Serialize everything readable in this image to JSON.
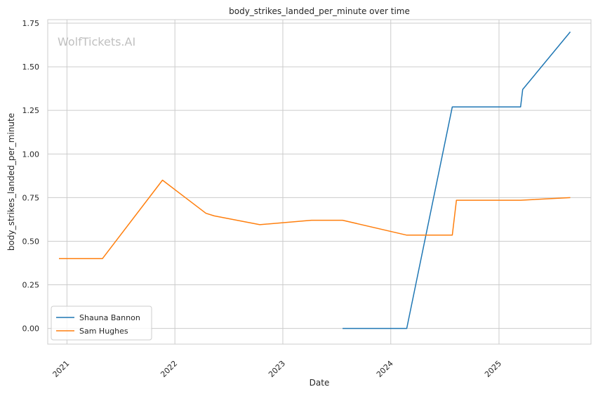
{
  "watermark": "WolfTickets.AI",
  "chart_data": {
    "type": "line",
    "title": "body_strikes_landed_per_minute over time",
    "xlabel": "Date",
    "ylabel": "body_strikes_landed_per_minute",
    "ylim": [
      -0.09,
      1.77
    ],
    "xlim": [
      "2020-10-28",
      "2025-11-08"
    ],
    "x_ticks": [
      {
        "date": "2021-01-01",
        "label": "2021"
      },
      {
        "date": "2022-01-01",
        "label": "2022"
      },
      {
        "date": "2023-01-01",
        "label": "2023"
      },
      {
        "date": "2024-01-01",
        "label": "2024"
      },
      {
        "date": "2025-01-01",
        "label": "2025"
      }
    ],
    "y_ticks": [
      {
        "value": 0.0,
        "label": "0.00"
      },
      {
        "value": 0.25,
        "label": "0.25"
      },
      {
        "value": 0.5,
        "label": "0.50"
      },
      {
        "value": 0.75,
        "label": "0.75"
      },
      {
        "value": 1.0,
        "label": "1.00"
      },
      {
        "value": 1.25,
        "label": "1.25"
      },
      {
        "value": 1.5,
        "label": "1.50"
      },
      {
        "value": 1.75,
        "label": "1.75"
      }
    ],
    "grid": true,
    "legend_position": "lower-left",
    "series": [
      {
        "name": "Shauna Bannon",
        "color": "#1f77b4",
        "points": [
          {
            "x": "2023-07-22",
            "y": 0.0
          },
          {
            "x": "2024-02-24",
            "y": 0.0
          },
          {
            "x": "2024-07-27",
            "y": 1.27
          },
          {
            "x": "2025-03-15",
            "y": 1.27
          },
          {
            "x": "2025-03-22",
            "y": 1.37
          },
          {
            "x": "2025-08-30",
            "y": 1.7
          }
        ]
      },
      {
        "name": "Sam Hughes",
        "color": "#ff7f0e",
        "points": [
          {
            "x": "2020-12-05",
            "y": 0.4
          },
          {
            "x": "2021-05-01",
            "y": 0.4
          },
          {
            "x": "2021-11-20",
            "y": 0.85
          },
          {
            "x": "2022-04-16",
            "y": 0.66
          },
          {
            "x": "2022-05-14",
            "y": 0.645
          },
          {
            "x": "2022-10-15",
            "y": 0.595
          },
          {
            "x": "2023-04-08",
            "y": 0.62
          },
          {
            "x": "2023-07-22",
            "y": 0.62
          },
          {
            "x": "2024-02-24",
            "y": 0.535
          },
          {
            "x": "2024-07-27",
            "y": 0.535
          },
          {
            "x": "2024-08-10",
            "y": 0.735
          },
          {
            "x": "2025-03-15",
            "y": 0.735
          },
          {
            "x": "2025-08-30",
            "y": 0.75
          }
        ]
      }
    ]
  }
}
